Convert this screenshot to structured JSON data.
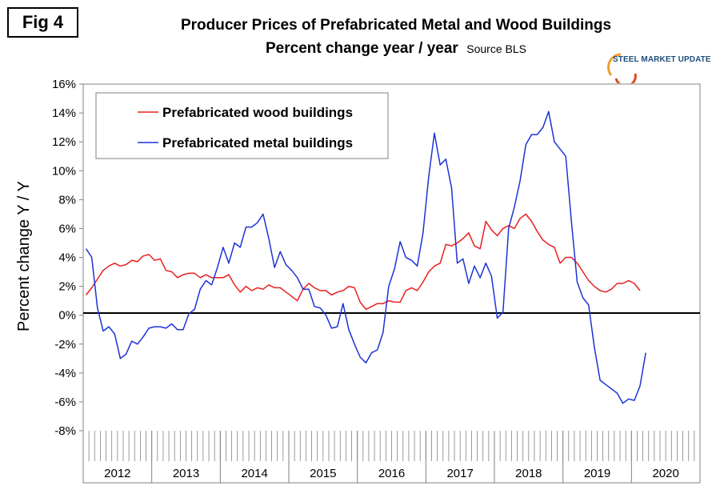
{
  "figure_label": "Fig 4",
  "logo": {
    "text": "STEEL MARKET UPDATE",
    "accent": "#f0a030",
    "color": "#1d4f7a"
  },
  "chart_data": {
    "type": "line",
    "title": "Producer Prices of Prefabricated Metal and Wood Buildings",
    "subtitle": "Percent change year / year",
    "source": "Source BLS",
    "ylabel": "Percent change Y / Y",
    "xlabel": "",
    "ylim": [
      -8,
      16
    ],
    "yticks": [
      -8,
      -6,
      -4,
      -2,
      0,
      2,
      4,
      6,
      8,
      10,
      12,
      14,
      16
    ],
    "ytick_labels": [
      "-8%",
      "-6%",
      "-4%",
      "-2%",
      "0%",
      "2%",
      "4%",
      "6%",
      "8%",
      "10%",
      "12%",
      "14%",
      "16%"
    ],
    "years": [
      "2012",
      "2013",
      "2014",
      "2015",
      "2016",
      "2017",
      "2018",
      "2019",
      "2020"
    ],
    "months_total": 108,
    "legend_position": "top-left",
    "series": [
      {
        "name": "Prefabricated wood buildings",
        "color": "#e8201e",
        "values": [
          1.4,
          1.9,
          2.5,
          3.1,
          3.4,
          3.6,
          3.4,
          3.5,
          3.8,
          3.7,
          4.1,
          4.2,
          3.8,
          3.9,
          3.1,
          3.0,
          2.6,
          2.8,
          2.9,
          2.9,
          2.6,
          2.8,
          2.6,
          2.6,
          2.6,
          2.8,
          2.1,
          1.6,
          2.0,
          1.7,
          1.9,
          1.8,
          2.1,
          1.9,
          1.9,
          1.6,
          1.3,
          1.0,
          1.8,
          2.2,
          1.9,
          1.7,
          1.7,
          1.4,
          1.6,
          1.7,
          2.0,
          1.9,
          0.9,
          0.4,
          0.6,
          0.8,
          0.8,
          1.0,
          0.9,
          0.9,
          1.7,
          1.9,
          1.7,
          2.3,
          3.0,
          3.4,
          3.6,
          4.9,
          4.8,
          5.0,
          5.3,
          5.7,
          4.8,
          4.6,
          6.5,
          5.9,
          5.5,
          6.0,
          6.2,
          6.0,
          6.7,
          7.0,
          6.5,
          5.8,
          5.2,
          4.9,
          4.7,
          3.6,
          4.0,
          4.0,
          3.6,
          3.0,
          2.4,
          2.0,
          1.7,
          1.6,
          1.8,
          2.2,
          2.2,
          2.4,
          2.2,
          1.7
        ]
      },
      {
        "name": "Prefabricated metal buildings",
        "color": "#1a34d6",
        "values": [
          4.6,
          4.0,
          0.5,
          -1.1,
          -0.8,
          -1.3,
          -3.0,
          -2.7,
          -1.8,
          -2.0,
          -1.5,
          -0.9,
          -0.8,
          -0.8,
          -0.9,
          -0.6,
          -1.0,
          -1.0,
          0.1,
          0.4,
          1.8,
          2.4,
          2.1,
          3.3,
          4.7,
          3.6,
          5.0,
          4.7,
          6.1,
          6.1,
          6.4,
          7.0,
          5.3,
          3.3,
          4.4,
          3.5,
          3.1,
          2.6,
          1.8,
          1.8,
          0.6,
          0.5,
          0.0,
          -0.9,
          -0.8,
          0.8,
          -1.0,
          -2.0,
          -2.9,
          -3.3,
          -2.6,
          -2.4,
          -1.2,
          2.0,
          3.2,
          5.1,
          4.0,
          3.8,
          3.4,
          5.7,
          9.6,
          12.6,
          10.4,
          10.8,
          8.8,
          3.6,
          3.9,
          2.2,
          3.4,
          2.6,
          3.6,
          2.7,
          -0.2,
          0.2,
          6.0,
          7.5,
          9.3,
          11.8,
          12.5,
          12.5,
          13.0,
          14.1,
          12.0,
          11.5,
          11.0,
          6.4,
          2.3,
          1.2,
          0.7,
          -2.2,
          -4.5,
          -4.8,
          -5.1,
          -5.4,
          -6.1,
          -5.8,
          -5.9,
          -4.9,
          -2.6
        ]
      }
    ]
  }
}
